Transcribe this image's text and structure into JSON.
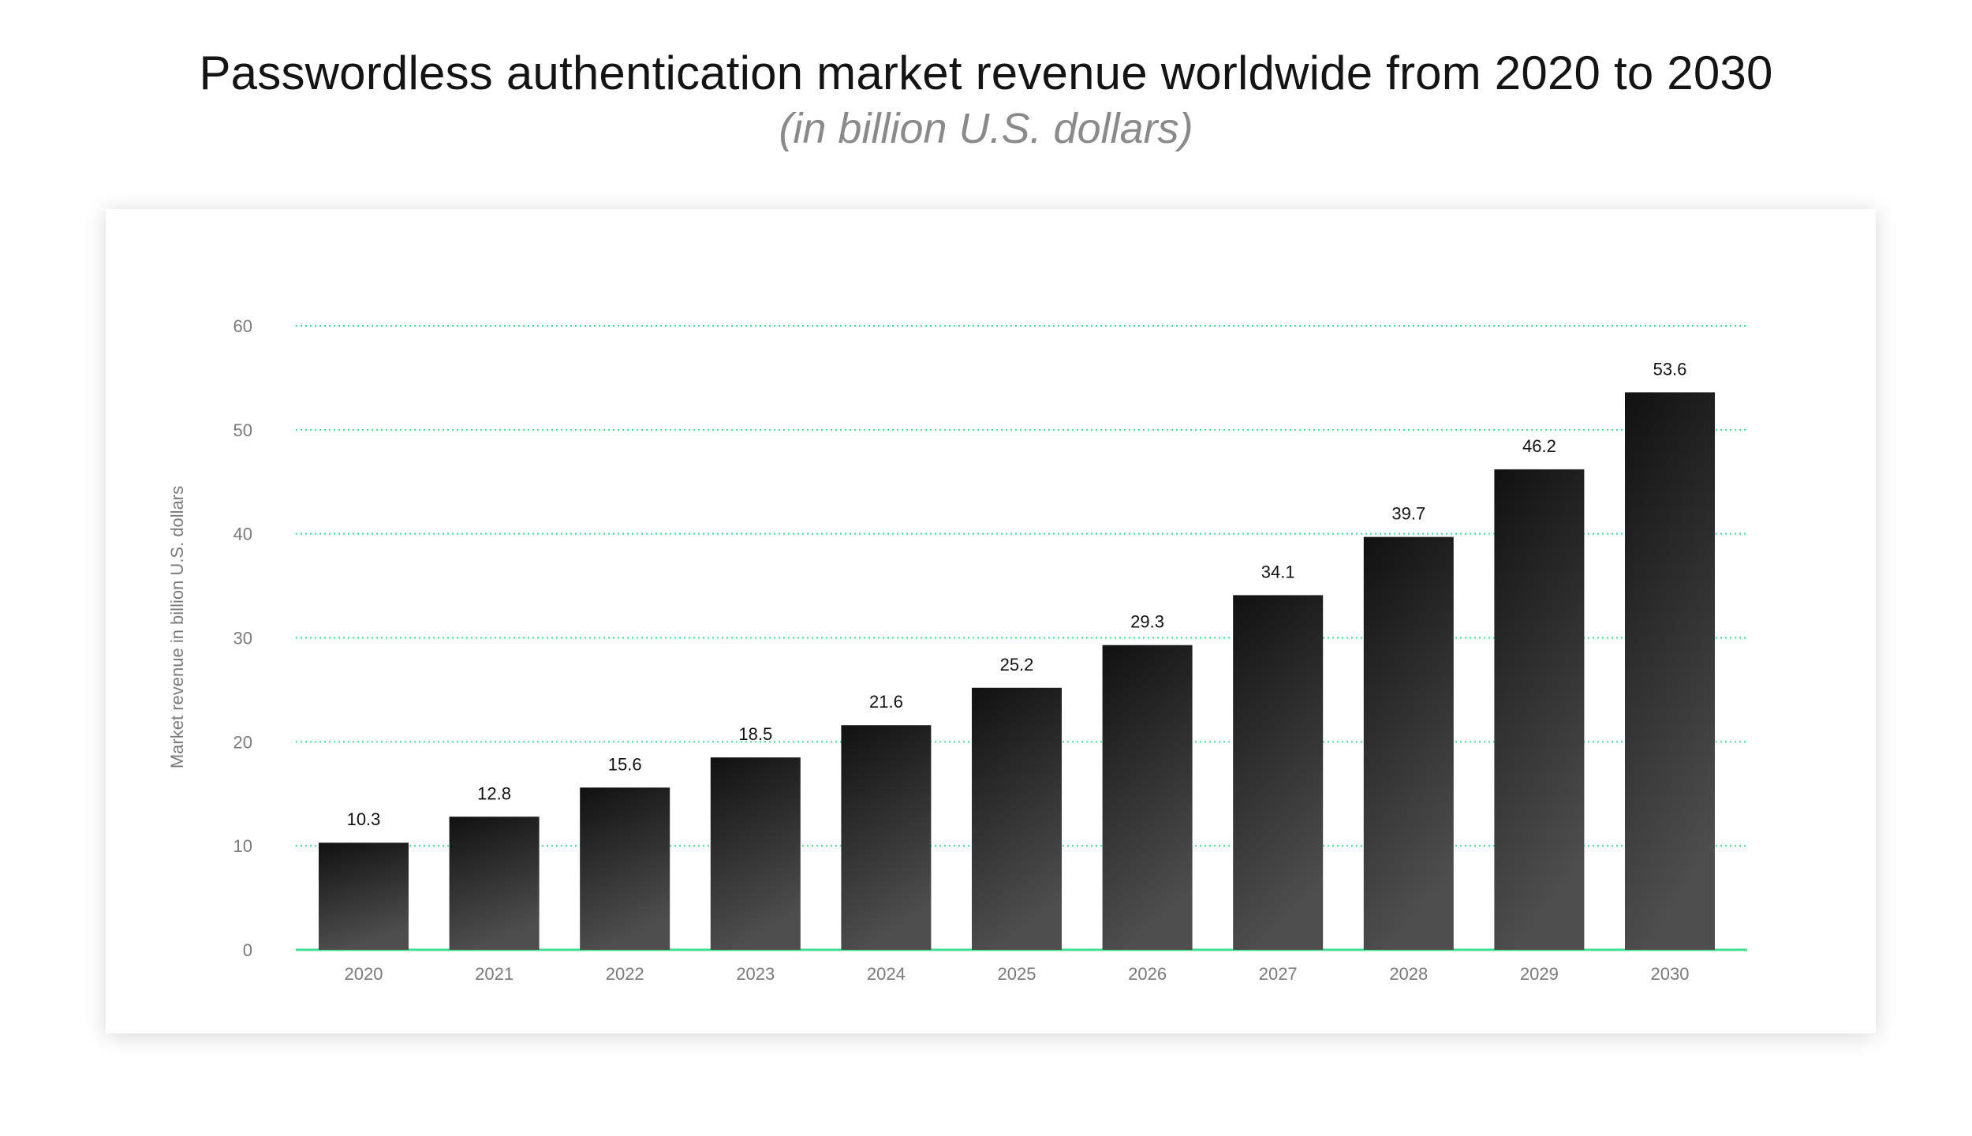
{
  "title": "Passwordless authentication market revenue worldwide from 2020 to 2030",
  "subtitle": "(in billion U.S. dollars)",
  "colors": {
    "grid": "#3ee08f",
    "bar_top": "#111111",
    "bar_bottom": "#4e4e4e",
    "tick_text": "#7a7a7a",
    "value_text": "#111111"
  },
  "chart_data": {
    "type": "bar",
    "title": "Passwordless authentication market revenue worldwide from 2020 to 2030",
    "subtitle": "(in billion U.S. dollars)",
    "xlabel": "",
    "ylabel": "Market revenue in billion U.S. dollars",
    "categories": [
      "2020",
      "2021",
      "2022",
      "2023",
      "2024",
      "2025",
      "2026",
      "2027",
      "2028",
      "2029",
      "2030"
    ],
    "values": [
      10.3,
      12.8,
      15.6,
      18.5,
      21.6,
      25.2,
      29.3,
      34.1,
      39.7,
      46.2,
      53.6
    ],
    "value_labels": [
      "10.3",
      "12.8",
      "15.6",
      "18.5",
      "21.6",
      "25.2",
      "29.3",
      "34.1",
      "39.7",
      "46.2",
      "53.6"
    ],
    "ylim": [
      0,
      60
    ],
    "yticks": [
      0,
      10,
      20,
      30,
      40,
      50,
      60
    ],
    "grid": true,
    "legend": "none"
  }
}
